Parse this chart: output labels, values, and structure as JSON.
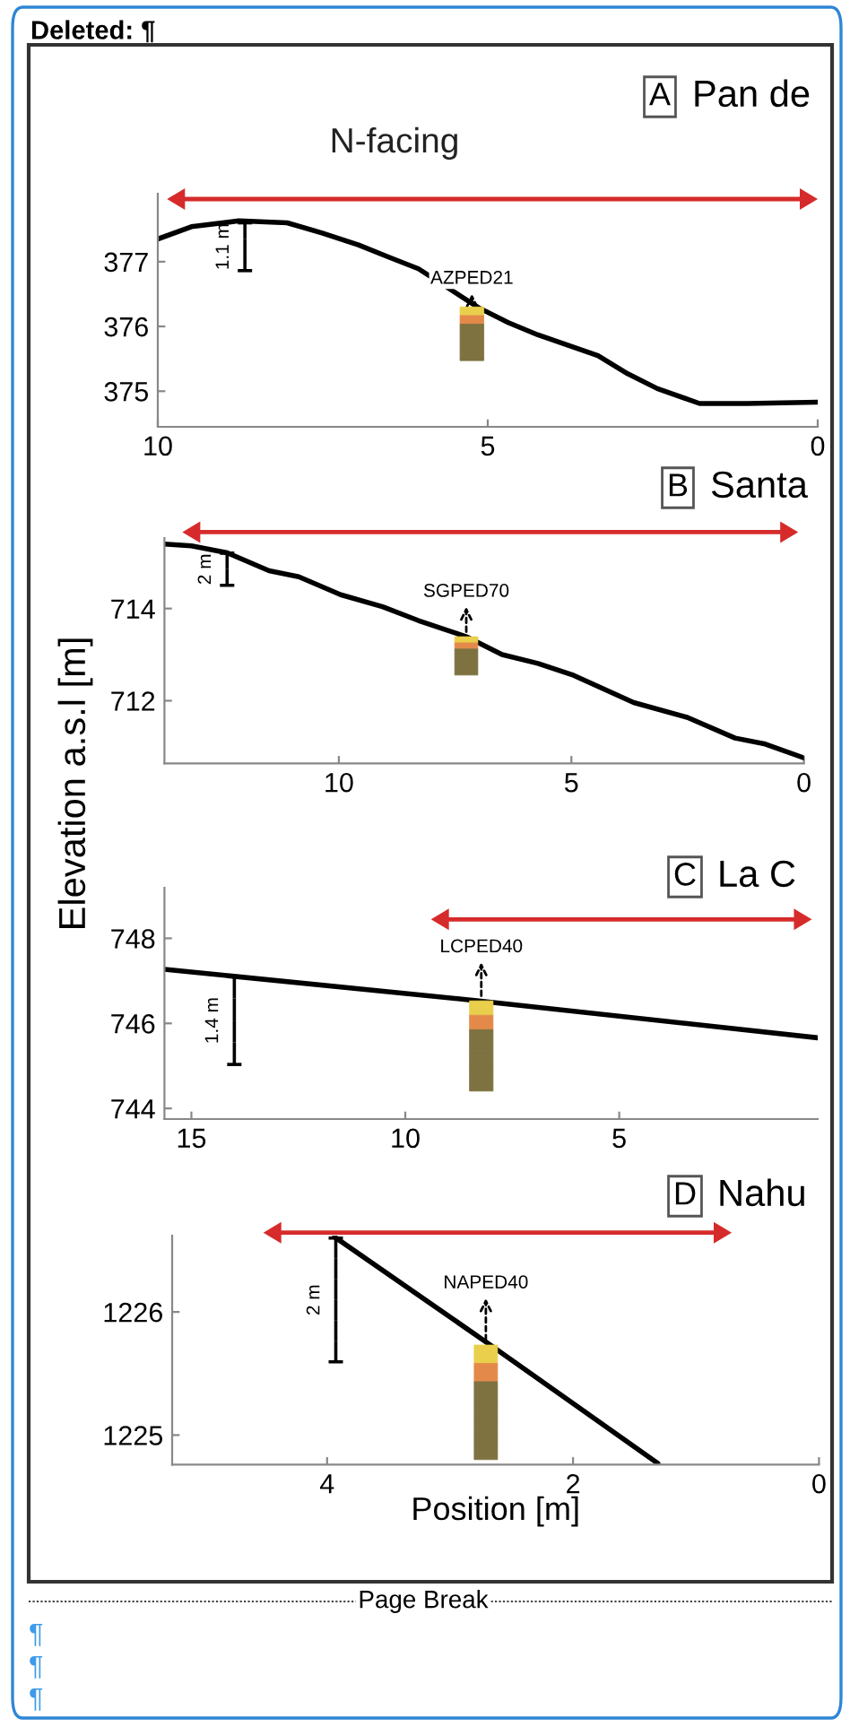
{
  "chart_data": [
    {
      "type": "line",
      "title": "Pan de",
      "xlim": [
        10,
        0
      ],
      "xticks": [
        10,
        5,
        0
      ],
      "ylim": [
        374.45,
        378.05
      ],
      "yticks": [
        375,
        376,
        377
      ],
      "grid": false,
      "legend": false,
      "x": [
        10,
        9.49,
        8.77,
        8.04,
        7.5,
        6.96,
        6.5,
        6.05,
        5.14,
        4.69,
        4.24,
        3.33,
        2.88,
        2.43,
        1.79,
        1.07,
        0
      ],
      "series": [
        {
          "color": "#000000",
          "values": [
            377.35,
            377.54,
            377.63,
            377.6,
            377.44,
            377.26,
            377.07,
            376.89,
            376.29,
            376.06,
            375.87,
            375.55,
            375.27,
            375.04,
            374.81,
            374.81,
            374.83
          ]
        }
      ],
      "annotations": [
        "A",
        "N-facing",
        "Deleted: ¶",
        "AZPED21",
        "1.1 m"
      ]
    },
    {
      "type": "line",
      "title": "Santa",
      "ylabel": "Elevation a.s.l [m]",
      "xlim": [
        13.75,
        0
      ],
      "xticks": [
        10,
        5,
        0
      ],
      "ylim": [
        710.64,
        715.53
      ],
      "yticks": [
        712,
        714
      ],
      "grid": false,
      "legend": false,
      "x": [
        13.75,
        13.17,
        12.4,
        11.5,
        10.86,
        9.96,
        9.06,
        8.29,
        7.26,
        6.49,
        5.72,
        4.95,
        3.66,
        2.51,
        1.48,
        0.83,
        0
      ],
      "series": [
        {
          "color": "#000000",
          "values": [
            715.4,
            715.36,
            715.21,
            714.82,
            714.69,
            714.3,
            714.04,
            713.74,
            713.39,
            713.0,
            712.81,
            712.55,
            711.96,
            711.64,
            711.19,
            711.06,
            710.76
          ]
        }
      ],
      "annotations": [
        "B",
        "SGPED70",
        "2 m"
      ]
    },
    {
      "type": "line",
      "title": "La C",
      "xlim": [
        15.63,
        0.36
      ],
      "xticks": [
        15,
        10,
        5
      ],
      "ylim": [
        743.75,
        749.19
      ],
      "yticks": [
        744,
        746,
        748
      ],
      "grid": false,
      "legend": false,
      "x": [
        15.63,
        8.28,
        0.36
      ],
      "series": [
        {
          "color": "#000000",
          "values": [
            747.27,
            746.53,
            745.66
          ]
        }
      ],
      "annotations": [
        "C",
        "LCPED40",
        "1.4 m"
      ]
    },
    {
      "type": "line",
      "title": "Nahu",
      "xlabel": "Position [m]",
      "xlim": [
        5.26,
        0
      ],
      "xticks": [
        4,
        2,
        0
      ],
      "ylim": [
        1224.76,
        1226.62
      ],
      "yticks": [
        1225,
        1226
      ],
      "grid": false,
      "legend": false,
      "x": [
        3.94,
        2.67,
        1.31
      ],
      "series": [
        {
          "color": "#000000",
          "values": [
            1226.61,
            1225.73,
            1224.77
          ]
        }
      ],
      "annotations": [
        "D",
        "Page Break",
        "¶",
        "¶",
        "¶",
        "NAPED40",
        "2 m"
      ]
    }
  ]
}
